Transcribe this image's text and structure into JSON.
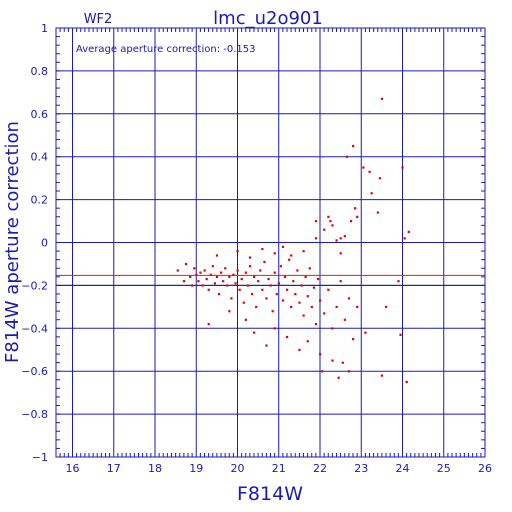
{
  "chart_data": {
    "type": "scatter",
    "title": "lmc_u2o901",
    "subtitle": "WF2",
    "annotation": "Average aperture correction: -0.153",
    "xlabel": "F814W",
    "ylabel": "F814W aperture correction",
    "xlim": [
      15.6,
      26
    ],
    "ylim": [
      -1,
      1
    ],
    "x_ticks": [
      "16",
      "17",
      "18",
      "19",
      "20",
      "21",
      "22",
      "23",
      "24",
      "25",
      "26"
    ],
    "y_ticks": [
      "1",
      "0.8",
      "0.6",
      "0.4",
      "0.2",
      "0",
      "−0.2",
      "−0.4",
      "−0.6",
      "−0.8",
      "−1"
    ],
    "grid": true,
    "reference_lines": [
      {
        "y": -0.153,
        "color": "#d42020"
      },
      {
        "y": -0.2,
        "color": "#1a1ab8"
      }
    ],
    "series": [
      {
        "color": "#e00000",
        "points": [
          [
            18.55,
            -0.13
          ],
          [
            18.7,
            -0.18
          ],
          [
            18.75,
            -0.1
          ],
          [
            18.85,
            -0.16
          ],
          [
            18.9,
            -0.2
          ],
          [
            18.95,
            -0.12
          ],
          [
            19.0,
            -0.15
          ],
          [
            19.05,
            -0.18
          ],
          [
            19.1,
            -0.14
          ],
          [
            19.15,
            -0.2
          ],
          [
            19.2,
            -0.13
          ],
          [
            19.25,
            -0.17
          ],
          [
            19.3,
            -0.22
          ],
          [
            19.35,
            -0.15
          ],
          [
            19.4,
            -0.11
          ],
          [
            19.45,
            -0.19
          ],
          [
            19.5,
            -0.16
          ],
          [
            19.55,
            -0.24
          ],
          [
            19.6,
            -0.14
          ],
          [
            19.65,
            -0.18
          ],
          [
            19.7,
            -0.12
          ],
          [
            19.75,
            -0.2
          ],
          [
            19.8,
            -0.16
          ],
          [
            19.85,
            -0.26
          ],
          [
            19.9,
            -0.15
          ],
          [
            19.95,
            -0.19
          ],
          [
            20.0,
            -0.13
          ],
          [
            20.05,
            -0.22
          ],
          [
            20.1,
            -0.17
          ],
          [
            20.15,
            -0.28
          ],
          [
            20.2,
            -0.14
          ],
          [
            20.25,
            -0.2
          ],
          [
            20.3,
            -0.11
          ],
          [
            20.35,
            -0.24
          ],
          [
            20.4,
            -0.16
          ],
          [
            20.45,
            -0.3
          ],
          [
            20.5,
            -0.18
          ],
          [
            20.55,
            -0.13
          ],
          [
            20.6,
            -0.22
          ],
          [
            20.65,
            -0.09
          ],
          [
            20.7,
            -0.26
          ],
          [
            20.75,
            -0.17
          ],
          [
            20.8,
            -0.2
          ],
          [
            20.85,
            -0.32
          ],
          [
            20.9,
            -0.14
          ],
          [
            20.95,
            -0.24
          ],
          [
            21.0,
            -0.19
          ],
          [
            21.05,
            -0.11
          ],
          [
            21.1,
            -0.27
          ],
          [
            21.15,
            -0.16
          ],
          [
            21.2,
            -0.22
          ],
          [
            21.25,
            -0.08
          ],
          [
            21.3,
            -0.3
          ],
          [
            21.35,
            -0.18
          ],
          [
            21.4,
            -0.24
          ],
          [
            21.45,
            -0.13
          ],
          [
            21.5,
            -0.28
          ],
          [
            21.55,
            -0.2
          ],
          [
            21.6,
            -0.34
          ],
          [
            21.65,
            -0.16
          ],
          [
            21.7,
            -0.25
          ],
          [
            21.75,
            -0.12
          ],
          [
            21.8,
            -0.3
          ],
          [
            21.85,
            -0.21
          ],
          [
            21.9,
            -0.38
          ],
          [
            21.95,
            -0.17
          ],
          [
            22.0,
            -0.27
          ],
          [
            22.1,
            -0.33
          ],
          [
            22.2,
            -0.22
          ],
          [
            22.3,
            -0.4
          ],
          [
            22.4,
            -0.3
          ],
          [
            22.5,
            -0.18
          ],
          [
            22.6,
            -0.36
          ],
          [
            22.7,
            -0.26
          ],
          [
            22.8,
            -0.45
          ],
          [
            22.9,
            -0.3
          ],
          [
            19.3,
            -0.38
          ],
          [
            19.8,
            -0.32
          ],
          [
            20.2,
            -0.36
          ],
          [
            20.4,
            -0.42
          ],
          [
            20.7,
            -0.48
          ],
          [
            20.9,
            -0.4
          ],
          [
            21.2,
            -0.44
          ],
          [
            21.5,
            -0.5
          ],
          [
            21.7,
            -0.46
          ],
          [
            22.0,
            -0.52
          ],
          [
            22.05,
            -0.6
          ],
          [
            22.3,
            -0.55
          ],
          [
            22.45,
            -0.63
          ],
          [
            22.55,
            -0.56
          ],
          [
            22.7,
            -0.6
          ],
          [
            23.1,
            -0.42
          ],
          [
            23.5,
            -0.62
          ],
          [
            19.5,
            -0.06
          ],
          [
            20.0,
            -0.04
          ],
          [
            20.3,
            -0.07
          ],
          [
            20.6,
            -0.03
          ],
          [
            20.9,
            -0.05
          ],
          [
            21.1,
            -0.02
          ],
          [
            21.3,
            -0.06
          ],
          [
            21.6,
            -0.04
          ],
          [
            21.9,
            0.02
          ],
          [
            22.1,
            0.06
          ],
          [
            22.25,
            0.1
          ],
          [
            22.4,
            0.01
          ],
          [
            22.5,
            -0.05
          ],
          [
            22.6,
            0.03
          ],
          [
            22.75,
            0.1
          ],
          [
            21.9,
            0.1
          ],
          [
            22.2,
            0.12
          ],
          [
            22.3,
            0.08
          ],
          [
            22.5,
            0.02
          ],
          [
            22.65,
            0.4
          ],
          [
            22.8,
            0.45
          ],
          [
            22.85,
            0.16
          ],
          [
            22.9,
            0.12
          ],
          [
            23.05,
            0.35
          ],
          [
            23.2,
            0.33
          ],
          [
            23.25,
            0.23
          ],
          [
            23.4,
            0.14
          ],
          [
            23.45,
            0.3
          ],
          [
            23.5,
            0.67
          ],
          [
            23.95,
            -0.43
          ],
          [
            24.0,
            0.35
          ],
          [
            24.05,
            0.02
          ],
          [
            24.1,
            -0.65
          ],
          [
            24.15,
            0.05
          ],
          [
            23.6,
            -0.3
          ],
          [
            23.9,
            -0.18
          ]
        ]
      }
    ]
  }
}
